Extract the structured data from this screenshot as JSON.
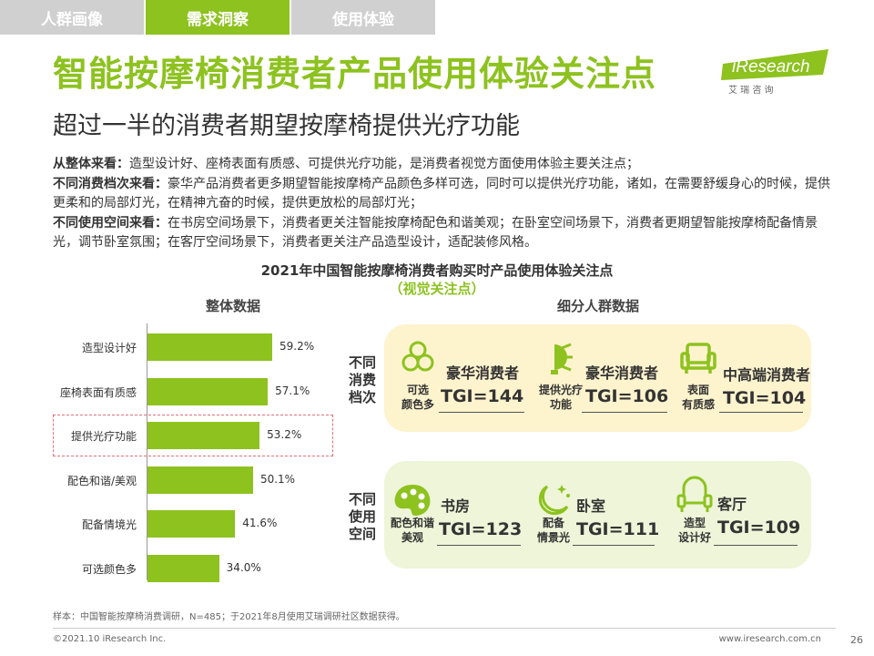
{
  "tabs": [
    {
      "label": "人群画像"
    },
    {
      "label": "需求洞察"
    },
    {
      "label": "使用体验"
    }
  ],
  "title": "智能按摩椅消费者产品使用体验关注点",
  "logo": {
    "brand": "iResearch",
    "sub": "艾 瑞 咨 询"
  },
  "subtitle": "超过一半的消费者期望按摩椅提供光疗功能",
  "desc": [
    {
      "bold": "从整体来看：",
      "text": "造型设计好、座椅表面有质感、可提供光疗功能，是消费者视觉方面使用体验主要关注点；"
    },
    {
      "bold": "不同消费档次来看：",
      "text": "豪华产品消费者更多期望智能按摩椅产品颜色多样可选，同时可以提供光疗功能，诸如，在需要舒缓身心的时候，提供更柔和的局部灯光，在精神亢奋的时候，提供更放松的局部灯光；"
    },
    {
      "bold": "不同使用空间来看：",
      "text": "在书房空间场景下，消费者更关注智能按摩椅配色和谐美观；在卧室空间场景下，消费者更期望智能按摩椅配备情景光，调节卧室氛围；在客厅空间场景下，消费者更关注产品造型设计，适配装修风格。"
    }
  ],
  "chart_title": "2021年中国智能按摩椅消费者购买时产品使用体验关注点",
  "chart_subtitle": "（视觉关注点）",
  "left_head": "整体数据",
  "right_head": "细分人群数据",
  "chart_data": {
    "type": "bar",
    "orientation": "horizontal",
    "title": "整体数据",
    "categories": [
      "造型设计好",
      "座椅表面有质感",
      "提供光疗功能",
      "配色和谐/美观",
      "配备情境光",
      "可选颜色多"
    ],
    "values": [
      59.2,
      57.1,
      53.2,
      50.1,
      41.6,
      34.0
    ],
    "value_labels": [
      "59.2%",
      "57.1%",
      "53.2%",
      "50.1%",
      "41.6%",
      "34.0%"
    ],
    "unit": "%",
    "highlight_index": 2,
    "color": "#8dc21f"
  },
  "segments": {
    "row1_label": "不同消费档次",
    "row2_label": "不同使用空间",
    "row1": [
      {
        "icon": "color-palette-circles-icon",
        "cap": "可选\n颜色多",
        "name": "豪华消费者",
        "tgi": "TGI=144"
      },
      {
        "icon": "light-bulb-icon",
        "cap": "提供光疗\n功能",
        "name": "豪华消费者",
        "tgi": "TGI=106"
      },
      {
        "icon": "sofa-chair-icon",
        "cap": "表面\n有质感",
        "name": "中高端消费者",
        "tgi": "TGI=104"
      }
    ],
    "row2": [
      {
        "icon": "paint-palette-icon",
        "cap": "配色和谐\n美观",
        "name": "书房",
        "tgi": "TGI=123"
      },
      {
        "icon": "moon-stars-icon",
        "cap": "配备\n情景光",
        "name": "卧室",
        "tgi": "TGI=111"
      },
      {
        "icon": "armchair-outline-icon",
        "cap": "造型\n设计好",
        "name": "客厅",
        "tgi": "TGI=109"
      }
    ]
  },
  "colors": {
    "accent": "#8dc21f",
    "panel1": "#fdf3cd",
    "panel2": "#eef5d8",
    "highlight": "#e0707a"
  },
  "note": "样本：中国智能按摩椅消费调研，N=485；于2021年8月使用艾瑞调研社区数据获得。",
  "copyright": "©2021.10 iResearch Inc.",
  "site": "www.iresearch.com.cn",
  "page_number": "26"
}
